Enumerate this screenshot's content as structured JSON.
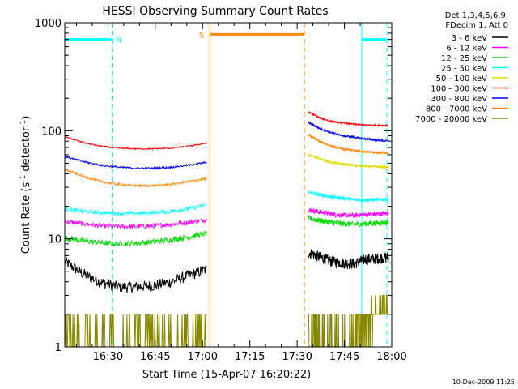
{
  "chart_data": {
    "type": "line",
    "title": "HESSI Observing Summary Count Rates",
    "xlabel": "Start Time (15-Apr-07 16:20:22)",
    "ylabel_main": "Count Rate (s",
    "ylabel_sup1": "-1",
    "ylabel_mid": " detector",
    "ylabel_sup2": "-1",
    "ylabel_end": ")",
    "yscale": "log",
    "ylim": [
      1,
      1000
    ],
    "xlim_minutes": [
      16.3,
      120
    ],
    "x_ticks": [
      {
        "label": "16:30",
        "min": 30
      },
      {
        "label": "16:45",
        "min": 45
      },
      {
        "label": "17:00",
        "min": 60
      },
      {
        "label": "17:15",
        "min": 75
      },
      {
        "label": "17:30",
        "min": 90
      },
      {
        "label": "17:45",
        "min": 105
      },
      {
        "label": "18:00",
        "min": 120
      }
    ],
    "y_ticks": [
      {
        "label": "1",
        "value": 1
      },
      {
        "label": "10",
        "value": 10
      },
      {
        "label": "100",
        "value": 100
      },
      {
        "label": "1000",
        "value": 1000
      }
    ],
    "legend_header": [
      "Det 1,3,4,5,6,9,",
      "FDecim 1, Att 0"
    ],
    "series": [
      {
        "name": "3 - 6 keV",
        "color": "#000000",
        "seg1": [
          6.2,
          4.8,
          4.0,
          3.6,
          3.6,
          3.7,
          4.0,
          4.6,
          5.2
        ],
        "seg2": [
          7.5,
          6.8,
          6.2,
          6.0,
          5.9,
          6.5,
          6.6,
          6.8
        ],
        "noise": 0.12
      },
      {
        "name": "6 - 12 keV",
        "color": "#ff00ff",
        "seg1": [
          14.5,
          13.8,
          13.2,
          13.0,
          13.0,
          13.2,
          13.6,
          14.2,
          15.0
        ],
        "seg2": [
          18.5,
          17.8,
          17.0,
          16.5,
          16.5,
          16.8,
          17.0,
          17.2
        ],
        "noise": 0.05
      },
      {
        "name": "12 - 25 keV",
        "color": "#00dd00",
        "seg1": [
          10.2,
          9.6,
          9.2,
          9.0,
          9.1,
          9.4,
          9.8,
          10.4,
          11.2
        ],
        "seg2": [
          15.5,
          14.8,
          14.2,
          13.8,
          13.6,
          13.8,
          14.0,
          14.2
        ],
        "noise": 0.06
      },
      {
        "name": "25 - 50 keV",
        "color": "#00ffff",
        "seg1": [
          19.0,
          18.0,
          17.5,
          17.2,
          17.2,
          17.5,
          18.0,
          19.0,
          20.5
        ],
        "seg2": [
          27.0,
          25.5,
          24.5,
          23.8,
          23.0,
          23.0,
          23.0,
          23.2
        ],
        "noise": 0.04
      },
      {
        "name": "50 - 100 keV",
        "color": "#dddd00",
        "seg1": [],
        "seg2": [
          60.0,
          55.0,
          51.0,
          49.0,
          48.0,
          47.0,
          46.5,
          46.0
        ],
        "noise": 0.025
      },
      {
        "name": "100 - 300 keV",
        "color": "#ff0000",
        "seg1": [
          88,
          78,
          72,
          69,
          68,
          68,
          69,
          72,
          77
        ],
        "seg2": [
          150,
          132,
          122,
          118,
          115,
          113,
          112,
          112
        ],
        "noise": 0.015
      },
      {
        "name": "300 - 800 keV",
        "color": "#0000ff",
        "seg1": [
          58,
          52,
          48,
          46,
          45,
          45,
          46,
          48,
          51
        ],
        "seg2": [
          120,
          105,
          96,
          90,
          87,
          84,
          82,
          80
        ],
        "noise": 0.02
      },
      {
        "name": "800 - 7000 keV",
        "color": "#ff8800",
        "seg1": [
          44,
          38,
          34,
          32,
          31,
          31,
          32,
          34,
          36
        ],
        "seg2": [
          92,
          80,
          72,
          68,
          66,
          64,
          63,
          62
        ],
        "noise": 0.025
      },
      {
        "name": "7000 - 20000 keV",
        "color": "#888800",
        "seg1": [
          1.3,
          1.3,
          1.3,
          1.3,
          1.3,
          1.3,
          1.3,
          1.3,
          1.4
        ],
        "seg2": [
          1.3,
          1.3,
          1.3,
          1.3,
          1.4,
          1.8,
          2.2,
          2.4
        ],
        "noise": 0.3
      }
    ],
    "segments_minutes": {
      "seg1": [
        16.3,
        61.3
      ],
      "seg2": [
        93.5,
        119
      ]
    },
    "markers": [
      {
        "label": "N",
        "color": "#00ffff",
        "start": 16.3,
        "end": 31.3,
        "level": 700,
        "type": "night"
      },
      {
        "label": "",
        "color": "#00ffff",
        "start": 110.5,
        "end": 118.5,
        "level": 700,
        "type": "night"
      },
      {
        "label": "S",
        "color": "#ff8800",
        "start": 62.3,
        "end": 92.3,
        "level": 780,
        "type": "saa"
      }
    ],
    "footer_date": "10-Dec-2009 11:25"
  }
}
